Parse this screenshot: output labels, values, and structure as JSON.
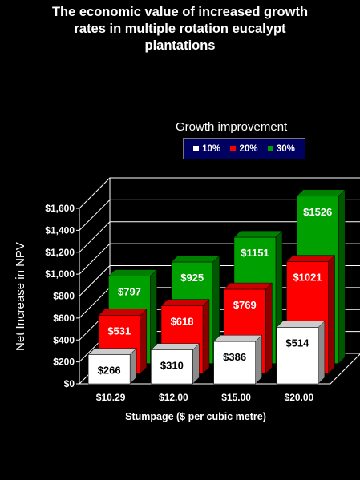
{
  "chart_data": {
    "type": "bar",
    "title": [
      "The economic value of increased growth",
      "rates in multiple rotation eucalypt",
      "plantations"
    ],
    "xlabel": "Stumpage ($ per cubic metre)",
    "ylabel": "Net Increase in NPV",
    "categories": [
      "$10.29",
      "$12.00",
      "$15.00",
      "$20.00"
    ],
    "ylim": [
      0,
      1600
    ],
    "yticks": [
      0,
      200,
      400,
      600,
      800,
      1000,
      1200,
      1400,
      1600
    ],
    "ytick_labels": [
      "$0",
      "$200",
      "$400",
      "$600",
      "$800",
      "$1,000",
      "$1,200",
      "$1,400",
      "$1,600"
    ],
    "legend_title": "Growth improvement",
    "legend_position": "top-right",
    "series": [
      {
        "name": "10%",
        "color": "#ffffff",
        "values": [
          266,
          310,
          386,
          514
        ],
        "labels": [
          "$266",
          "$310",
          "$386",
          "$514"
        ],
        "label_color": "#000000"
      },
      {
        "name": "20%",
        "color": "#ff0000",
        "values": [
          531,
          618,
          769,
          1021
        ],
        "labels": [
          "$531",
          "$618",
          "$769",
          "$1021"
        ],
        "label_color": "#ffffff"
      },
      {
        "name": "30%",
        "color": "#00a000",
        "values": [
          797,
          925,
          1151,
          1526
        ],
        "labels": [
          "$797",
          "$925",
          "$1151",
          "$1526"
        ],
        "label_color": "#ffffff"
      }
    ],
    "style": "3d-clustered-depth",
    "grid": true
  }
}
